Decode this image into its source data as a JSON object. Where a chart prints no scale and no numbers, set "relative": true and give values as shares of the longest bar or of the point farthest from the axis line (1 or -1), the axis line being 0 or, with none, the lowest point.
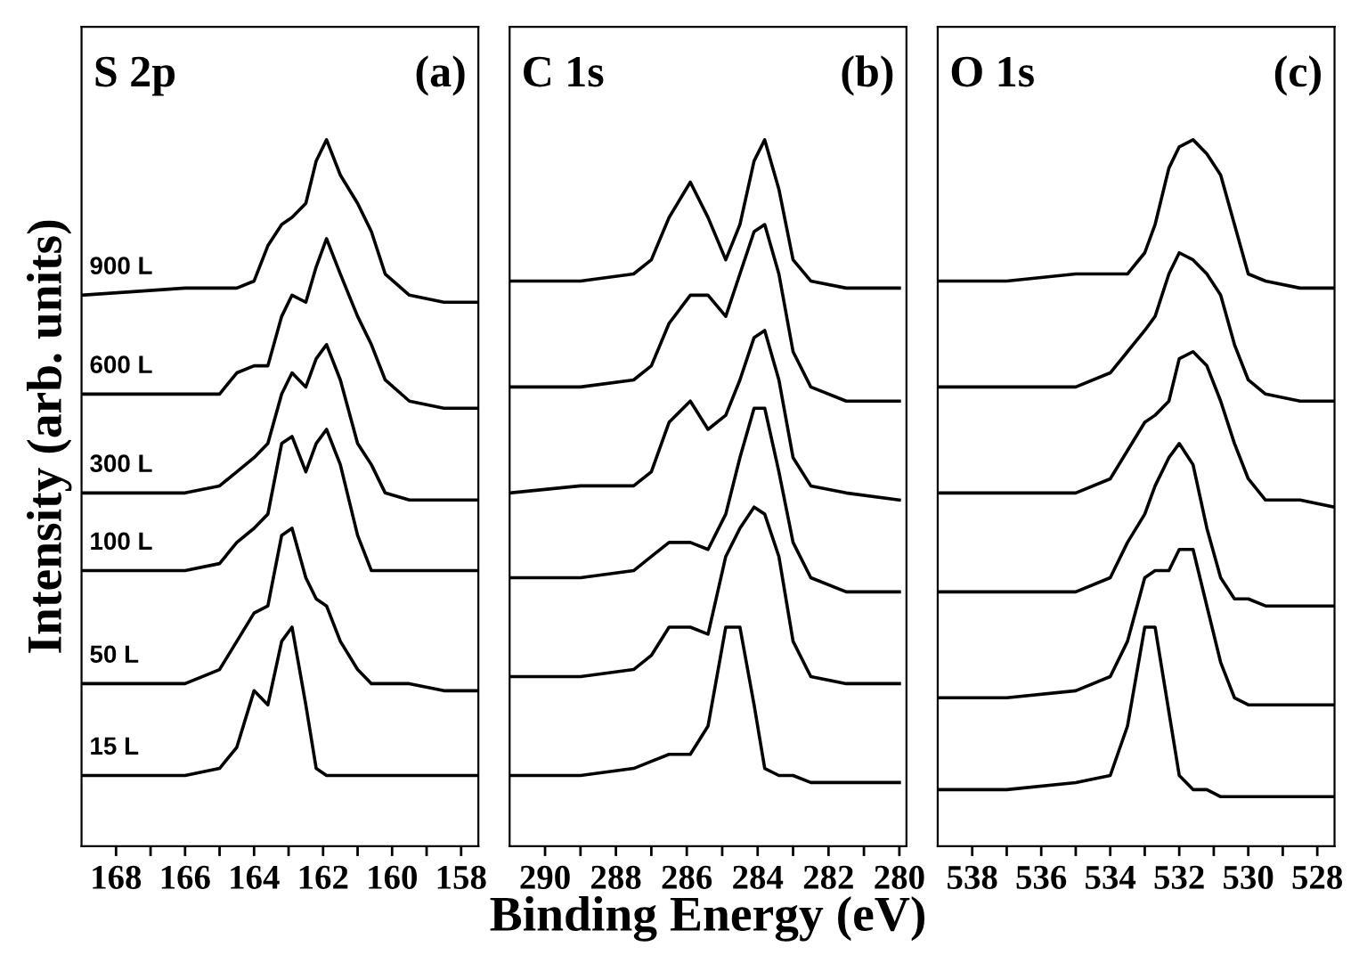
{
  "chart_data": [
    {
      "type": "line",
      "title": "S 2p",
      "annotations": [
        "(a)"
      ],
      "ylabel": "Intensity (arb. units)",
      "relative": true,
      "tick_labels": "x",
      "grid": false,
      "legend": false,
      "marker": "none",
      "line_style": "solid",
      "x": [
        169,
        166,
        165,
        164.5,
        164,
        163.6,
        163.2,
        162.9,
        162.5,
        162.2,
        161.9,
        161.5,
        161.0,
        160.6,
        160.2,
        159.5,
        158.5,
        157.5
      ],
      "xlim": [
        169,
        157.5
      ],
      "xticks": [
        168,
        {
          "value": 167,
          "label": null
        },
        166,
        {
          "value": 165,
          "label": null
        },
        164,
        {
          "value": 163,
          "label": null
        },
        162,
        {
          "value": 161,
          "label": null
        },
        160,
        {
          "value": 159,
          "label": null
        },
        158
      ],
      "series": [
        {
          "name": "900 L",
          "color": "#000000",
          "values": [
            0.78,
            0.79,
            0.79,
            0.79,
            0.8,
            0.85,
            0.88,
            0.89,
            0.91,
            0.97,
            1.0,
            0.95,
            0.91,
            0.87,
            0.81,
            0.78,
            0.77,
            0.77
          ]
        },
        {
          "name": "600 L",
          "color": "#000000",
          "values": [
            0.64,
            0.64,
            0.64,
            0.67,
            0.68,
            0.68,
            0.75,
            0.78,
            0.77,
            0.82,
            0.86,
            0.81,
            0.75,
            0.71,
            0.66,
            0.63,
            0.62,
            0.62
          ]
        },
        {
          "name": "300 L",
          "color": "#000000",
          "values": [
            0.5,
            0.5,
            0.51,
            0.53,
            0.55,
            0.57,
            0.64,
            0.67,
            0.65,
            0.69,
            0.71,
            0.66,
            0.57,
            0.54,
            0.5,
            0.49,
            0.49,
            0.49
          ]
        },
        {
          "name": "100 L",
          "color": "#000000",
          "values": [
            0.39,
            0.39,
            0.4,
            0.43,
            0.45,
            0.47,
            0.57,
            0.58,
            0.53,
            0.57,
            0.59,
            0.54,
            0.44,
            0.39,
            0.39,
            0.39,
            0.39,
            0.39
          ]
        },
        {
          "name": "50 L",
          "color": "#000000",
          "values": [
            0.23,
            0.23,
            0.25,
            0.29,
            0.33,
            0.34,
            0.44,
            0.45,
            0.38,
            0.35,
            0.34,
            0.29,
            0.25,
            0.23,
            0.23,
            0.23,
            0.22,
            0.22
          ]
        },
        {
          "name": "15 L",
          "color": "#000000",
          "values": [
            0.1,
            0.1,
            0.11,
            0.14,
            0.22,
            0.2,
            0.29,
            0.31,
            0.2,
            0.11,
            0.1,
            0.1,
            0.1,
            0.1,
            0.1,
            0.1,
            0.1,
            0.1
          ]
        }
      ]
    },
    {
      "type": "line",
      "title": "C 1s",
      "annotations": [
        "(b)"
      ],
      "xlabel": "Binding Energy (eV)",
      "relative": true,
      "tick_labels": "x",
      "grid": false,
      "legend": false,
      "marker": "none",
      "line_style": "solid",
      "x": [
        291,
        289,
        287.5,
        287,
        286.5,
        285.9,
        285.4,
        284.9,
        284.5,
        284.1,
        283.8,
        283.4,
        283,
        282.5,
        281.5,
        280
      ],
      "xlim": [
        291,
        279.8
      ],
      "xticks": [
        290,
        {
          "value": 289,
          "label": null
        },
        288,
        {
          "value": 287,
          "label": null
        },
        286,
        {
          "value": 285,
          "label": null
        },
        284,
        {
          "value": 283,
          "label": null
        },
        282,
        {
          "value": 281,
          "label": null
        },
        280
      ],
      "series": [
        {
          "color": "#000000",
          "values": [
            0.8,
            0.8,
            0.81,
            0.83,
            0.89,
            0.94,
            0.89,
            0.83,
            0.88,
            0.97,
            1.0,
            0.93,
            0.83,
            0.8,
            0.79,
            0.79
          ]
        },
        {
          "color": "#000000",
          "values": [
            0.65,
            0.65,
            0.66,
            0.68,
            0.74,
            0.78,
            0.78,
            0.75,
            0.81,
            0.87,
            0.88,
            0.81,
            0.7,
            0.65,
            0.63,
            0.63
          ]
        },
        {
          "color": "#000000",
          "values": [
            0.5,
            0.51,
            0.51,
            0.53,
            0.6,
            0.63,
            0.59,
            0.61,
            0.66,
            0.72,
            0.73,
            0.66,
            0.55,
            0.51,
            0.5,
            0.49
          ]
        },
        {
          "color": "#000000",
          "values": [
            0.38,
            0.38,
            0.39,
            0.41,
            0.43,
            0.43,
            0.42,
            0.47,
            0.55,
            0.62,
            0.62,
            0.53,
            0.43,
            0.38,
            0.36,
            0.36
          ]
        },
        {
          "color": "#000000",
          "values": [
            0.24,
            0.24,
            0.25,
            0.27,
            0.31,
            0.31,
            0.3,
            0.41,
            0.45,
            0.48,
            0.47,
            0.41,
            0.29,
            0.24,
            0.23,
            0.23
          ]
        },
        {
          "color": "#000000",
          "values": [
            0.1,
            0.1,
            0.11,
            0.12,
            0.13,
            0.13,
            0.17,
            0.31,
            0.31,
            0.2,
            0.11,
            0.1,
            0.1,
            0.09,
            0.09,
            0.09
          ]
        }
      ]
    },
    {
      "type": "line",
      "title": "O 1s",
      "annotations": [
        "(c)"
      ],
      "relative": true,
      "tick_labels": "x",
      "grid": false,
      "legend": false,
      "marker": "none",
      "line_style": "solid",
      "x": [
        539,
        537,
        535,
        534,
        533.5,
        533,
        532.7,
        532.3,
        532,
        531.6,
        531.2,
        530.8,
        530.4,
        530,
        529.5,
        528.5,
        527.5
      ],
      "xlim": [
        539,
        527.5
      ],
      "xticks": [
        538,
        {
          "value": 537,
          "label": null
        },
        536,
        {
          "value": 535,
          "label": null
        },
        534,
        {
          "value": 533,
          "label": null
        },
        532,
        {
          "value": 531,
          "label": null
        },
        530,
        {
          "value": 529,
          "label": null
        },
        528
      ],
      "series": [
        {
          "color": "#000000",
          "values": [
            0.8,
            0.8,
            0.81,
            0.81,
            0.81,
            0.84,
            0.88,
            0.96,
            0.99,
            1.0,
            0.98,
            0.95,
            0.88,
            0.81,
            0.8,
            0.79,
            0.79
          ]
        },
        {
          "color": "#000000",
          "values": [
            0.65,
            0.65,
            0.65,
            0.67,
            0.7,
            0.73,
            0.75,
            0.81,
            0.84,
            0.83,
            0.81,
            0.78,
            0.71,
            0.66,
            0.64,
            0.63,
            0.63
          ]
        },
        {
          "color": "#000000",
          "values": [
            0.5,
            0.5,
            0.5,
            0.52,
            0.56,
            0.6,
            0.61,
            0.63,
            0.69,
            0.7,
            0.68,
            0.63,
            0.57,
            0.52,
            0.49,
            0.49,
            0.48
          ]
        },
        {
          "color": "#000000",
          "values": [
            0.36,
            0.36,
            0.36,
            0.38,
            0.43,
            0.47,
            0.51,
            0.55,
            0.57,
            0.54,
            0.45,
            0.38,
            0.35,
            0.35,
            0.34,
            0.34,
            0.34
          ]
        },
        {
          "color": "#000000",
          "values": [
            0.21,
            0.21,
            0.22,
            0.24,
            0.29,
            0.38,
            0.39,
            0.39,
            0.42,
            0.42,
            0.34,
            0.26,
            0.21,
            0.2,
            0.2,
            0.2,
            0.2
          ]
        },
        {
          "color": "#000000",
          "values": [
            0.08,
            0.08,
            0.09,
            0.1,
            0.17,
            0.31,
            0.31,
            0.19,
            0.1,
            0.08,
            0.08,
            0.07,
            0.07,
            0.07,
            0.07,
            0.07,
            0.07
          ]
        }
      ]
    }
  ]
}
